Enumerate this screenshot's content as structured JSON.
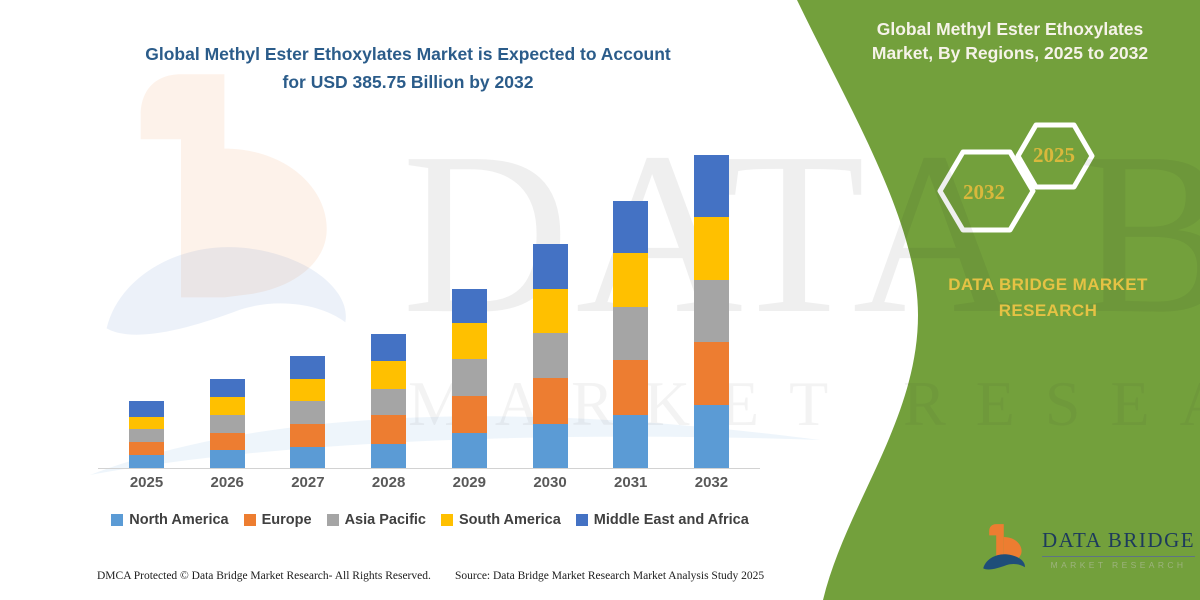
{
  "main_title": {
    "line1": "Global Methyl Ester Ethoxylates Market is Expected to Account",
    "line2": "for USD 385.75 Billion by 2032"
  },
  "side_panel": {
    "title": "Global Methyl Ester Ethoxylates Market, By Regions, 2025 to 2032",
    "hexagons": [
      {
        "label": "2032"
      },
      {
        "label": "2025"
      }
    ],
    "brand_text": "DATA BRIDGE MARKET RESEARCH",
    "panel_color": "#73a03c",
    "accent_gold": "#e5c244"
  },
  "watermark": {
    "line1": "DATA BRIDGE",
    "line2": "MARKET RESEARCH"
  },
  "chart_data": {
    "type": "bar",
    "stacked": true,
    "title": "Global Methyl Ester Ethoxylates Market, By Regions, 2025 to 2032",
    "unit": "USD Billion",
    "categories": [
      "2025",
      "2026",
      "2027",
      "2028",
      "2029",
      "2030",
      "2031",
      "2032"
    ],
    "series": [
      {
        "name": "North America",
        "color": "#5B9BD5",
        "values": [
          16.0,
          22.2,
          25.9,
          29.6,
          43.1,
          54.2,
          65.3,
          77.8
        ]
      },
      {
        "name": "Europe",
        "color": "#ED7D31",
        "values": [
          16.0,
          21.0,
          28.3,
          35.7,
          45.6,
          56.7,
          67.8,
          77.6
        ]
      },
      {
        "name": "Asia Pacific",
        "color": "#A5A5A5",
        "values": [
          16.0,
          22.2,
          28.3,
          32.0,
          45.6,
          55.5,
          65.3,
          76.4
        ]
      },
      {
        "name": "South America",
        "color": "#FFC000",
        "values": [
          14.8,
          22.2,
          27.1,
          34.5,
          44.4,
          54.2,
          66.6,
          77.6
        ]
      },
      {
        "name": "Middle East and Africa",
        "color": "#4472C4",
        "values": [
          19.7,
          22.2,
          28.3,
          33.3,
          41.9,
          55.5,
          65.3,
          76.4
        ]
      }
    ],
    "totals_by_year": [
      82.5,
      109.8,
      137.9,
      165.1,
      220.6,
      276.1,
      330.3,
      385.75
    ],
    "ylim": [
      0,
      390
    ],
    "y_axis_visible": false,
    "gridlines": false,
    "legend_position": "bottom"
  },
  "logo": {
    "name": "DATA BRIDGE",
    "tagline": "MARKET RESEARCH"
  },
  "footer": {
    "dmca": "DMCA Protected © Data Bridge Market Research- All Rights Reserved.",
    "source": "Source: Data Bridge Market Research Market Analysis Study 2025"
  }
}
